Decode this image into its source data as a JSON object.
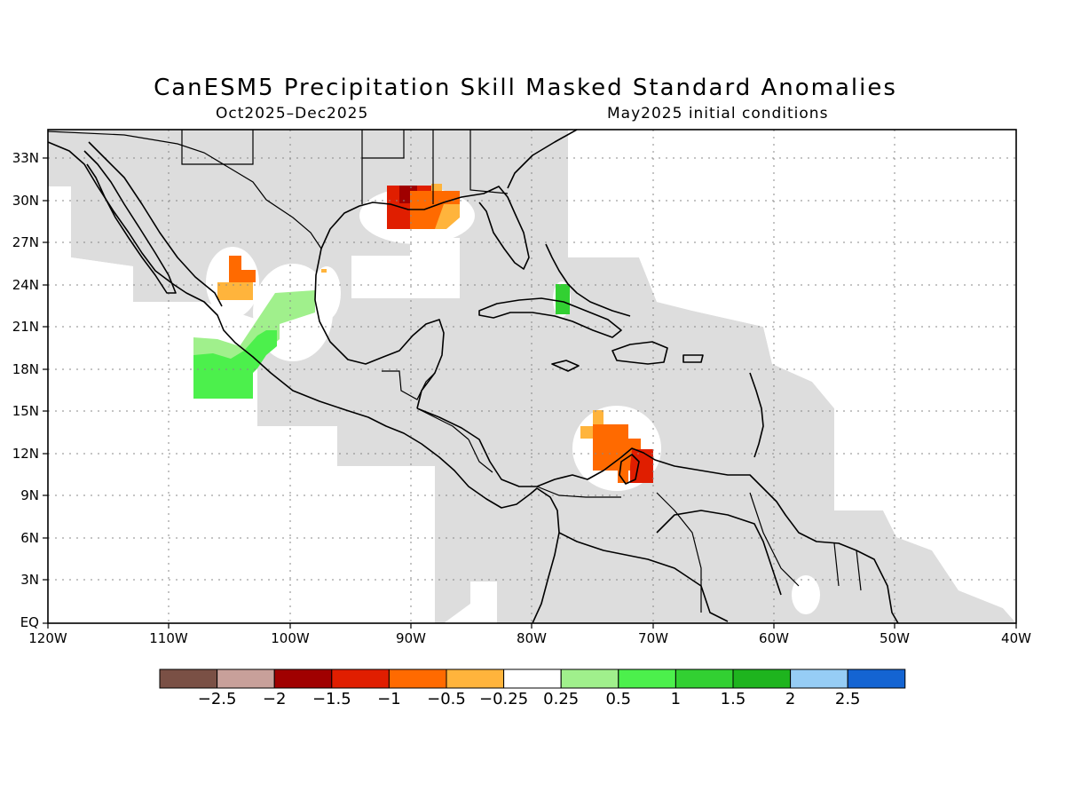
{
  "title": "CanESM5 Precipitation Skill Masked Standard Anomalies",
  "subtitle_left": "Oct2025–Dec2025",
  "subtitle_right": "May2025 initial conditions",
  "lat_labels": [
    "33N",
    "30N",
    "27N",
    "24N",
    "21N",
    "18N",
    "15N",
    "12N",
    "9N",
    "6N",
    "3N",
    "EQ"
  ],
  "lon_labels": [
    "120W",
    "110W",
    "100W",
    "90W",
    "80W",
    "70W",
    "60W",
    "50W",
    "40W"
  ],
  "colorbar": {
    "colors": [
      "#7a5045",
      "#c8a09a",
      "#a00000",
      "#e01e00",
      "#ff6a00",
      "#ffb43c",
      "#ffffff",
      "#a0f08c",
      "#4cf04c",
      "#32d032",
      "#1eb41e",
      "#96cdf5",
      "#1464d2"
    ],
    "labels": [
      "−2.5",
      "−2",
      "−1.5",
      "−1",
      "−0.5",
      "−0.25",
      "0.25",
      "0.5",
      "1",
      "1.5",
      "2",
      "2.5"
    ]
  },
  "colors": {
    "mask_gray": "#dddddd",
    "frame": "#000000",
    "grid": "#888888"
  }
}
